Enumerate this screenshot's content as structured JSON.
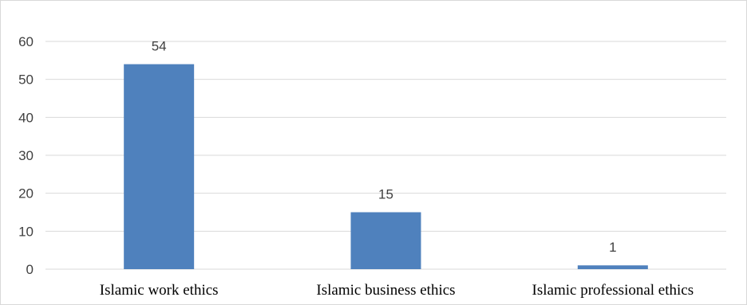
{
  "chart_data": {
    "type": "bar",
    "categories": [
      "Islamic work ethics",
      "Islamic business ethics",
      "Islamic professional ethics"
    ],
    "values": [
      54,
      15,
      1
    ],
    "data_labels": [
      "54",
      "15",
      "1"
    ],
    "title": "",
    "xlabel": "",
    "ylabel": "",
    "ylim": [
      0,
      60
    ],
    "yticks": [
      0,
      10,
      20,
      30,
      40,
      50,
      60
    ],
    "grid": true,
    "legend": "none",
    "bar_color": "#4f81bd",
    "grid_color": "#d9d9d9"
  }
}
